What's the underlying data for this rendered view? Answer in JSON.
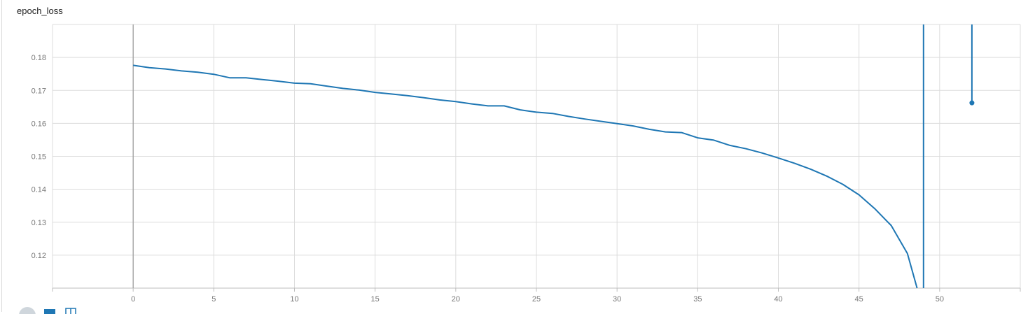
{
  "card": {
    "title": "epoch_loss"
  },
  "colors": {
    "series": "#1f77b4",
    "grid": "#dcdcdc",
    "axis": "#bdbdbd",
    "origin": "#999999",
    "text": "#777777"
  },
  "toolbar": {
    "icons": [
      "fit-domain-icon",
      "toggle-y-log-icon",
      "download-icon"
    ]
  },
  "chart_data": {
    "type": "line",
    "title": "",
    "xlabel": "",
    "ylabel": "",
    "xlim": [
      -5,
      55
    ],
    "ylim": [
      0.11,
      0.19
    ],
    "grid": true,
    "x_ticks": [
      "0",
      "5",
      "10",
      "15",
      "20",
      "25",
      "30",
      "35",
      "40",
      "45",
      "50"
    ],
    "y_ticks": [
      "0.12",
      "0.13",
      "0.14",
      "0.15",
      "0.16",
      "0.17",
      "0.18"
    ],
    "series": [
      {
        "x": [
          0,
          1,
          2,
          3,
          4,
          5,
          6,
          7,
          8,
          9,
          10,
          11,
          12,
          13,
          14,
          15,
          16,
          17,
          18,
          19,
          20,
          21,
          22,
          23,
          24,
          25,
          26,
          27,
          28,
          29,
          30,
          31,
          32,
          33,
          34,
          35,
          36,
          37,
          38,
          39,
          40,
          41,
          42,
          43,
          44,
          45,
          46,
          47,
          48,
          48.6
        ],
        "y": [
          0.1776,
          0.1769,
          0.1765,
          0.1759,
          0.1755,
          0.1749,
          0.1738,
          0.1738,
          0.1733,
          0.1728,
          0.1722,
          0.172,
          0.1713,
          0.1706,
          0.1701,
          0.1694,
          0.1689,
          0.1684,
          0.1678,
          0.1671,
          0.1666,
          0.1659,
          0.1653,
          0.1653,
          0.1641,
          0.1634,
          0.163,
          0.1621,
          0.1613,
          0.1606,
          0.1599,
          0.1592,
          0.1582,
          0.1574,
          0.1572,
          0.1556,
          0.1549,
          0.1533,
          0.1523,
          0.151,
          0.1495,
          0.1479,
          0.1461,
          0.144,
          0.1415,
          0.1383,
          0.134,
          0.129,
          0.1205,
          0.11
        ]
      },
      {
        "x": [
          49,
          49
        ],
        "y": [
          0.11,
          0.19
        ]
      },
      {
        "x": [
          52,
          52
        ],
        "y": [
          0.19,
          0.1662
        ]
      }
    ]
  }
}
